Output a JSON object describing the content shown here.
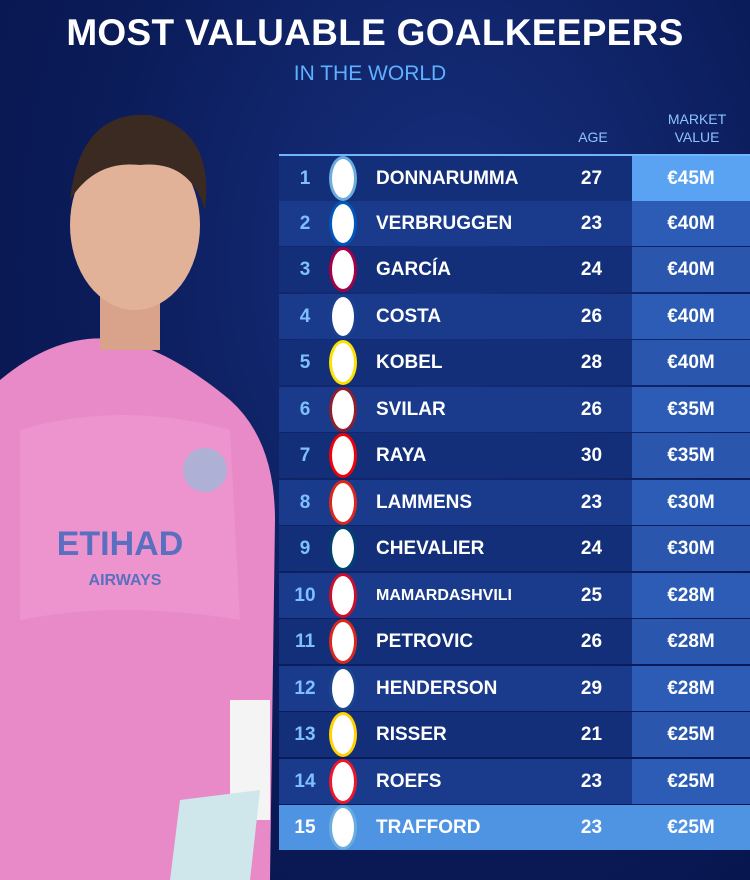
{
  "header": {
    "title": "MOST VALUABLE GOALKEEPERS",
    "subtitle": "IN THE WORLD"
  },
  "table": {
    "columns": [
      "AGE",
      "MARKET VALUE"
    ],
    "rows": [
      [
        1,
        "DONNARUMMA",
        27,
        "€45M"
      ],
      [
        2,
        "VERBRUGGEN",
        23,
        "€40M"
      ],
      [
        3,
        "GARCÍA",
        24,
        "€40M"
      ],
      [
        4,
        "COSTA",
        26,
        "€40M"
      ],
      [
        5,
        "KOBEL",
        28,
        "€40M"
      ],
      [
        6,
        "SVILAR",
        26,
        "€35M"
      ],
      [
        7,
        "RAYA",
        30,
        "€35M"
      ],
      [
        8,
        "LAMMENS",
        23,
        "€30M"
      ],
      [
        9,
        "CHEVALIER",
        24,
        "€30M"
      ],
      [
        10,
        "MAMARDASHVILI",
        25,
        "€28M"
      ],
      [
        11,
        "PETROVIC",
        26,
        "€28M"
      ],
      [
        12,
        "HENDERSON",
        29,
        "€28M"
      ],
      [
        13,
        "RISSER",
        21,
        "€25M"
      ],
      [
        14,
        "ROEFS",
        23,
        "€25M"
      ],
      [
        15,
        "TRAFFORD",
        23,
        "€25M"
      ]
    ]
  }
}
